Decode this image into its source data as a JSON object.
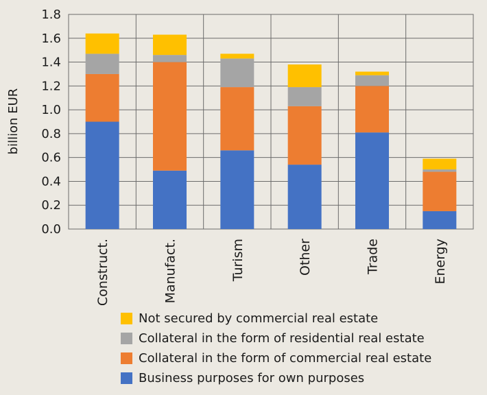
{
  "chart_data": {
    "type": "bar",
    "stacked": true,
    "title": "",
    "xlabel": "",
    "ylabel": "billion EUR",
    "ylim": [
      0,
      1.8
    ],
    "yticks": [
      "0.0",
      "0.2",
      "0.4",
      "0.6",
      "0.8",
      "1.0",
      "1.2",
      "1.4",
      "1.6",
      "1.8"
    ],
    "grid": true,
    "legend_position": "bottom",
    "categories": [
      "Construct.",
      "Manufact.",
      "Turism",
      "Other",
      "Trade",
      "Energy"
    ],
    "series": [
      {
        "name": "Business purposes for own purposes",
        "color": "#4472c4",
        "values": [
          0.9,
          0.49,
          0.66,
          0.54,
          0.81,
          0.15
        ]
      },
      {
        "name": "Collateral in the form of commercial real estate",
        "color": "#ed7d31",
        "values": [
          0.4,
          0.91,
          0.53,
          0.49,
          0.39,
          0.33
        ]
      },
      {
        "name": "Collateral in the form of residential real estate",
        "color": "#a5a5a5",
        "values": [
          0.17,
          0.06,
          0.24,
          0.16,
          0.09,
          0.02
        ]
      },
      {
        "name": "Not secured by commercial real estate",
        "color": "#ffc000",
        "values": [
          0.17,
          0.17,
          0.04,
          0.19,
          0.03,
          0.09
        ]
      }
    ],
    "legend_order": [
      3,
      2,
      1,
      0
    ]
  }
}
